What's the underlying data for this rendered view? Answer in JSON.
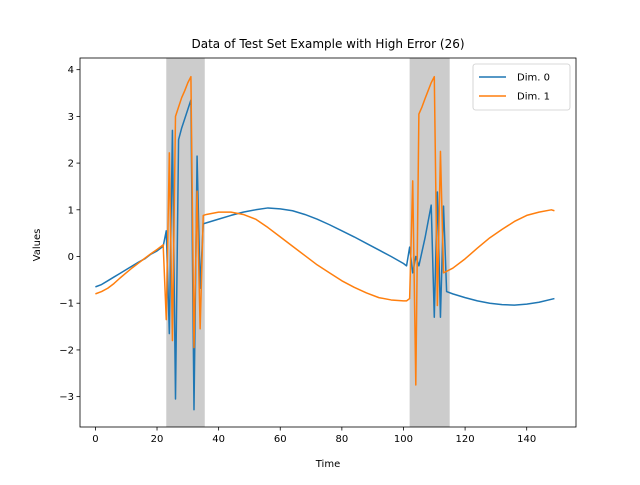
{
  "chart_data": {
    "type": "line",
    "title": "Data of Test Set Example with High Error (26)",
    "xlabel": "Time",
    "ylabel": "Values",
    "xlim": [
      -5,
      156
    ],
    "ylim": [
      -3.65,
      4.25
    ],
    "xticks": [
      0,
      20,
      40,
      60,
      80,
      100,
      120,
      140
    ],
    "yticks": [
      -3,
      -2,
      -1,
      0,
      1,
      2,
      3,
      4
    ],
    "grid": false,
    "legend": "top-right",
    "highlight_regions": [
      [
        23,
        35.5
      ],
      [
        102,
        115
      ]
    ],
    "highlight_color": "#cccccc",
    "series": [
      {
        "name": "Dim. 0",
        "color": "#1f77b4",
        "points": [
          [
            0,
            -0.65
          ],
          [
            2,
            -0.6
          ],
          [
            4,
            -0.52
          ],
          [
            6,
            -0.44
          ],
          [
            8,
            -0.36
          ],
          [
            10,
            -0.28
          ],
          [
            12,
            -0.2
          ],
          [
            14,
            -0.12
          ],
          [
            16,
            -0.05
          ],
          [
            18,
            0.05
          ],
          [
            20,
            0.12
          ],
          [
            22,
            0.22
          ],
          [
            23,
            0.55
          ],
          [
            24,
            -1.65
          ],
          [
            25,
            2.7
          ],
          [
            26,
            -3.05
          ],
          [
            27,
            2.5
          ],
          [
            28,
            2.75
          ],
          [
            29,
            2.95
          ],
          [
            30,
            3.15
          ],
          [
            31,
            3.35
          ],
          [
            32,
            -3.28
          ],
          [
            33,
            2.15
          ],
          [
            34,
            -0.68
          ],
          [
            35,
            0.7
          ],
          [
            36,
            0.72
          ],
          [
            40,
            0.8
          ],
          [
            44,
            0.88
          ],
          [
            48,
            0.95
          ],
          [
            52,
            1.0
          ],
          [
            56,
            1.04
          ],
          [
            60,
            1.02
          ],
          [
            64,
            0.98
          ],
          [
            68,
            0.9
          ],
          [
            72,
            0.8
          ],
          [
            76,
            0.68
          ],
          [
            80,
            0.55
          ],
          [
            84,
            0.42
          ],
          [
            88,
            0.28
          ],
          [
            92,
            0.14
          ],
          [
            96,
            0.0
          ],
          [
            100,
            -0.15
          ],
          [
            101,
            -0.2
          ],
          [
            102,
            0.2
          ],
          [
            103,
            -0.35
          ],
          [
            104,
            0.0
          ],
          [
            105,
            -0.2
          ],
          [
            106,
            0.1
          ],
          [
            107,
            0.4
          ],
          [
            108,
            0.75
          ],
          [
            109,
            1.1
          ],
          [
            110,
            -1.3
          ],
          [
            111,
            1.38
          ],
          [
            112,
            -1.3
          ],
          [
            113,
            1.08
          ],
          [
            114,
            -0.75
          ],
          [
            116,
            -0.8
          ],
          [
            120,
            -0.88
          ],
          [
            124,
            -0.95
          ],
          [
            128,
            -1.0
          ],
          [
            132,
            -1.03
          ],
          [
            136,
            -1.04
          ],
          [
            140,
            -1.02
          ],
          [
            144,
            -0.98
          ],
          [
            149,
            -0.9
          ]
        ]
      },
      {
        "name": "Dim. 1",
        "color": "#ff7f0e",
        "points": [
          [
            0,
            -0.8
          ],
          [
            2,
            -0.75
          ],
          [
            4,
            -0.68
          ],
          [
            6,
            -0.58
          ],
          [
            8,
            -0.46
          ],
          [
            10,
            -0.35
          ],
          [
            12,
            -0.24
          ],
          [
            14,
            -0.14
          ],
          [
            16,
            -0.04
          ],
          [
            18,
            0.06
          ],
          [
            20,
            0.15
          ],
          [
            22,
            0.25
          ],
          [
            23,
            -1.35
          ],
          [
            24,
            2.22
          ],
          [
            25,
            -1.8
          ],
          [
            26,
            3.0
          ],
          [
            27,
            3.2
          ],
          [
            28,
            3.4
          ],
          [
            29,
            3.55
          ],
          [
            30,
            3.72
          ],
          [
            31,
            3.85
          ],
          [
            32,
            -1.95
          ],
          [
            33,
            1.4
          ],
          [
            34,
            -1.55
          ],
          [
            35,
            0.88
          ],
          [
            36,
            0.9
          ],
          [
            40,
            0.95
          ],
          [
            44,
            0.95
          ],
          [
            48,
            0.9
          ],
          [
            52,
            0.8
          ],
          [
            56,
            0.62
          ],
          [
            60,
            0.42
          ],
          [
            64,
            0.22
          ],
          [
            68,
            0.02
          ],
          [
            72,
            -0.18
          ],
          [
            76,
            -0.35
          ],
          [
            80,
            -0.52
          ],
          [
            84,
            -0.66
          ],
          [
            88,
            -0.78
          ],
          [
            92,
            -0.88
          ],
          [
            96,
            -0.93
          ],
          [
            100,
            -0.95
          ],
          [
            101,
            -0.95
          ],
          [
            102,
            -0.9
          ],
          [
            103,
            1.62
          ],
          [
            104,
            -2.75
          ],
          [
            105,
            3.05
          ],
          [
            106,
            3.2
          ],
          [
            107,
            3.38
          ],
          [
            108,
            3.55
          ],
          [
            109,
            3.72
          ],
          [
            110,
            3.85
          ],
          [
            111,
            -1.05
          ],
          [
            112,
            2.25
          ],
          [
            113,
            -0.35
          ],
          [
            116,
            -0.25
          ],
          [
            120,
            -0.05
          ],
          [
            124,
            0.18
          ],
          [
            128,
            0.4
          ],
          [
            132,
            0.58
          ],
          [
            136,
            0.75
          ],
          [
            140,
            0.88
          ],
          [
            144,
            0.95
          ],
          [
            148,
            1.0
          ],
          [
            149,
            0.98
          ]
        ]
      }
    ]
  }
}
